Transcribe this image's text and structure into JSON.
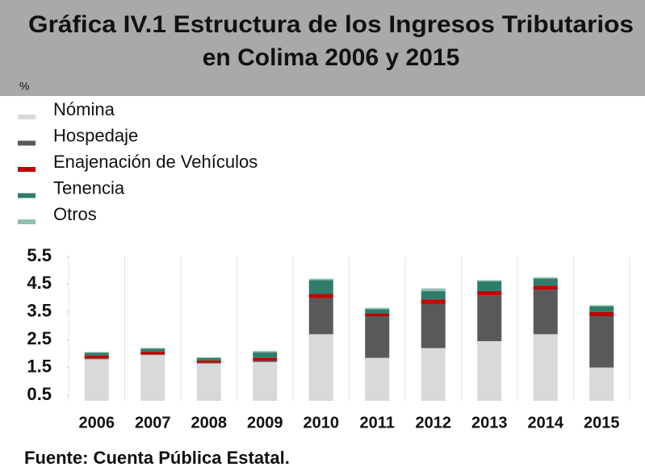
{
  "chart_data": {
    "type": "stacked_bar",
    "title": [
      "Gráfica IV.1 Estructura de los Ingresos Tributarios",
      "en Colima 2006 y 2015"
    ],
    "y_label": "%",
    "categories": [
      "2006",
      "2007",
      "2008",
      "2009",
      "2010",
      "2011",
      "2012",
      "2013",
      "2014",
      "2015"
    ],
    "series": [
      {
        "name": "Nómina",
        "color": "#d9d9d9",
        "values": [
          1.8,
          1.95,
          1.65,
          1.7,
          2.7,
          1.85,
          2.2,
          2.45,
          2.7,
          1.5
        ]
      },
      {
        "name": "Hospedaje",
        "color": "#595959",
        "values": [
          0.03,
          0.03,
          0.03,
          0.05,
          1.3,
          1.5,
          1.6,
          1.65,
          1.6,
          1.85
        ]
      },
      {
        "name": "Enajenación de Vehículos",
        "color": "#c00000",
        "values": [
          0.1,
          0.1,
          0.08,
          0.1,
          0.15,
          0.1,
          0.15,
          0.15,
          0.15,
          0.15
        ]
      },
      {
        "name": "Tenencia",
        "color": "#2e7d6b",
        "values": [
          0.1,
          0.1,
          0.08,
          0.2,
          0.5,
          0.15,
          0.3,
          0.35,
          0.25,
          0.2
        ]
      },
      {
        "name": "Otros",
        "color": "#8fbfb0",
        "values": [
          0.03,
          0.03,
          0.03,
          0.05,
          0.05,
          0.05,
          0.1,
          0.05,
          0.05,
          0.05
        ]
      }
    ],
    "ylim": [
      0.3,
      5.5
    ],
    "yticks": [
      0.5,
      1.5,
      2.5,
      3.5,
      4.5,
      5.5
    ],
    "source": "Fuente: Cuenta Pública Estatal."
  }
}
